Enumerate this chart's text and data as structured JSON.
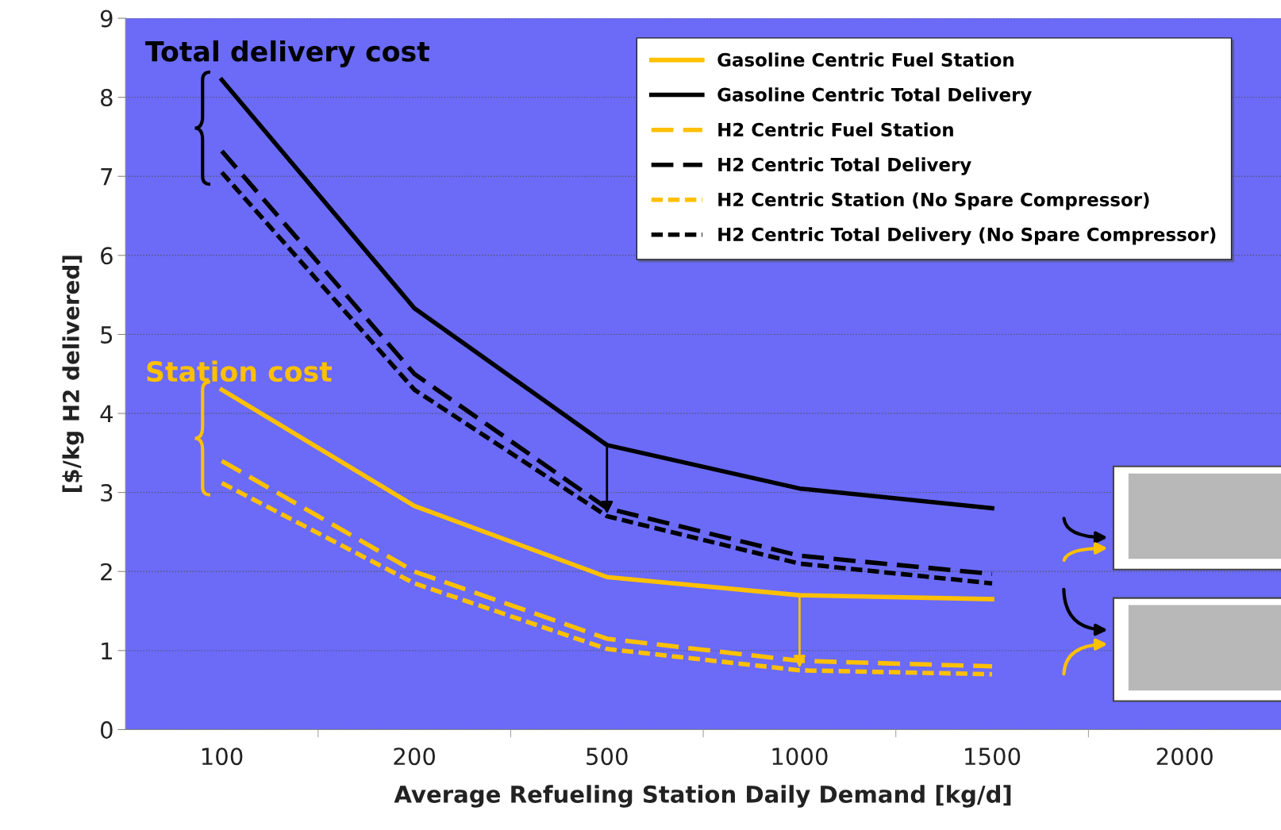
{
  "chart_data": {
    "type": "line",
    "xlabel": "Average Refueling Station Daily Demand [kg/d]",
    "ylabel": "[$/kg H2 delivered]",
    "categories": [
      "100",
      "200",
      "500",
      "1000",
      "1500",
      "2000"
    ],
    "ylim": [
      0,
      9
    ],
    "yticks": [
      0,
      1,
      2,
      3,
      4,
      5,
      6,
      7,
      8,
      9
    ],
    "grid": "y",
    "legend": "top right",
    "series": [
      {
        "name": "Gasoline Centric Fuel Station",
        "color": "#ffc000",
        "line_style": "solid",
        "values": [
          4.3,
          2.83,
          1.93,
          1.7,
          1.65,
          null
        ]
      },
      {
        "name": "Gasoline Centric Total Delivery",
        "color": "#000000",
        "line_style": "solid",
        "values": [
          8.22,
          5.33,
          3.6,
          3.05,
          2.8,
          null
        ]
      },
      {
        "name": "H2 Centric Fuel Station",
        "color": "#ffc000",
        "line_style": "dashed",
        "values": [
          3.4,
          2.0,
          1.15,
          0.87,
          0.8,
          null
        ]
      },
      {
        "name": "H2 Centric Total Delivery",
        "color": "#000000",
        "line_style": "dashed",
        "values": [
          7.32,
          4.5,
          2.8,
          2.2,
          1.97,
          null
        ]
      },
      {
        "name": "H2 Centric Station (No Spare Compressor)",
        "color": "#ffc000",
        "line_style": "dotted",
        "values": [
          3.12,
          1.85,
          1.02,
          0.75,
          0.7,
          null
        ]
      },
      {
        "name": "H2 Centric Total Delivery (No Spare Compressor)",
        "color": "#000000",
        "line_style": "dotted",
        "values": [
          7.05,
          4.3,
          2.7,
          2.1,
          1.85,
          null
        ]
      }
    ],
    "annotations": [
      "Total delivery cost",
      "Station cost"
    ]
  }
}
